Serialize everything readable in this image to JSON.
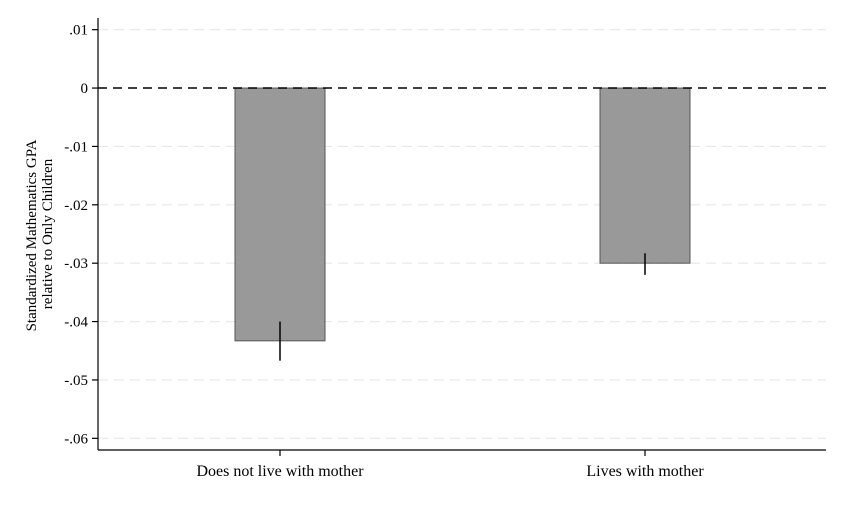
{
  "chart_data": {
    "type": "bar",
    "title": "",
    "xlabel": "",
    "ylabel_lines": [
      "Standardized Mathematics GPA",
      "relative to Only Children"
    ],
    "categories": [
      "Does not live with mother",
      "Lives with mother"
    ],
    "values": [
      -0.0433,
      -0.03
    ],
    "error_bars": [
      {
        "low": -0.0467,
        "high": -0.04
      },
      {
        "low": -0.032,
        "high": -0.0283
      }
    ],
    "ylim": [
      -0.062,
      0.012
    ],
    "yticks": [
      0.01,
      0,
      -0.01,
      -0.02,
      -0.03,
      -0.04,
      -0.05,
      -0.06
    ],
    "ytick_labels": [
      ".01",
      "0",
      "-.01",
      "-.02",
      "-.03",
      "-.04",
      "-.05",
      "-.06"
    ],
    "reference_line": {
      "y": 0,
      "style": "dashed"
    },
    "grid": true,
    "colors": {
      "bar_fill": "#999999",
      "bar_stroke": "#555555",
      "grid": "#e8e8e8",
      "axis": "#000000"
    }
  }
}
